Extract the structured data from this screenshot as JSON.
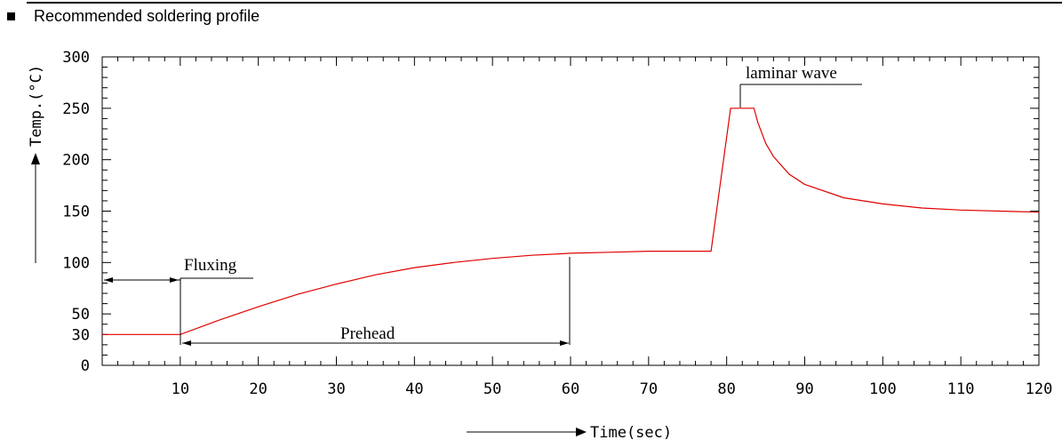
{
  "page": {
    "heading": "Recommended soldering profile"
  },
  "chart_data": {
    "type": "line",
    "title": "",
    "xlabel": "Time(sec)",
    "ylabel": "Temp.(°C)",
    "xlim": [
      0,
      120
    ],
    "ylim": [
      0,
      300
    ],
    "x_ticks": [
      10,
      20,
      30,
      40,
      50,
      60,
      70,
      80,
      90,
      100,
      110,
      120
    ],
    "y_ticks": [
      0,
      30,
      50,
      100,
      150,
      200,
      250,
      300
    ],
    "grid": false,
    "line_color": "#e00000",
    "series": [
      {
        "x": [
          0,
          10,
          15,
          20,
          25,
          30,
          35,
          40,
          45,
          50,
          55,
          60,
          65,
          70,
          75,
          78,
          80.5,
          83.5,
          84,
          85,
          86,
          88,
          90,
          95,
          100,
          105,
          110,
          115,
          120
        ],
        "y": [
          30,
          30,
          44,
          57,
          69,
          79,
          88,
          95,
          100,
          104,
          107,
          109,
          110,
          111,
          111,
          111,
          250,
          250,
          236,
          216,
          203,
          186,
          176,
          163,
          157,
          153,
          151,
          150,
          149
        ]
      }
    ],
    "annotations": [
      {
        "id": "fluxing",
        "text": "Fluxing"
      },
      {
        "id": "prehead",
        "text": "Prehead"
      },
      {
        "id": "laminar",
        "text": "laminar wave"
      }
    ]
  }
}
